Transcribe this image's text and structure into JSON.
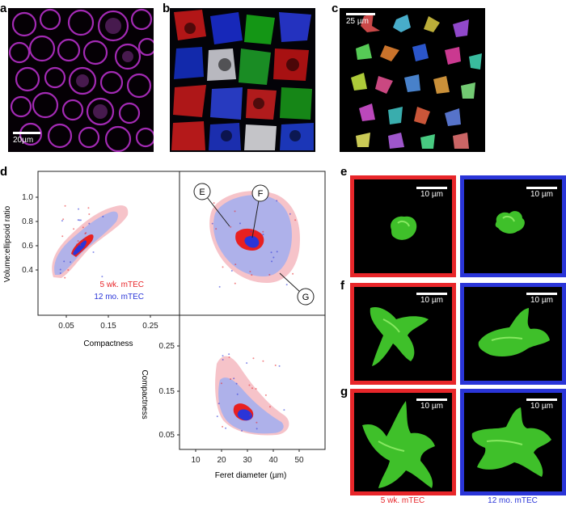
{
  "panels": {
    "a": {
      "letter": "a",
      "scale_label": "20µm"
    },
    "b": {
      "letter": "b"
    },
    "c": {
      "letter": "c",
      "scale_label": "25 µm"
    },
    "d": {
      "letter": "d"
    },
    "e": {
      "letter": "e",
      "scale_left": "10 µm",
      "scale_right": "10 µm"
    },
    "f": {
      "letter": "f",
      "scale_left": "10 µm",
      "scale_right": "10 µm"
    },
    "g": {
      "letter": "g",
      "scale_left": "10 µm",
      "scale_right": "10 µm"
    }
  },
  "captions": {
    "left": "5 wk. mTEC",
    "right": "12 mo. mTEC",
    "left_color": "#e8262a",
    "right_color": "#2a35d8"
  },
  "chart_data": [
    {
      "type": "scatter",
      "xlabel": "Compactness",
      "ylabel": "Volume:ellipsoid ratio",
      "xticks": [
        "0.05",
        "0.15",
        "0.25"
      ],
      "yticks": [
        "0.4",
        "0.6",
        "0.8",
        "1.0"
      ],
      "legend": [
        "5 wk. mTEC",
        "12 mo. mTEC"
      ],
      "series_colors": [
        "#e8262a",
        "#2a35d8"
      ]
    },
    {
      "type": "scatter",
      "annotations": [
        "E",
        "F",
        "G"
      ]
    },
    {
      "type": "scatter",
      "xlabel": "Feret diameter (µm)",
      "ylabel": "Compactness",
      "xticks": [
        "10",
        "20",
        "30",
        "40",
        "50"
      ],
      "yticks": [
        "0.05",
        "0.15",
        "0.25"
      ]
    }
  ]
}
